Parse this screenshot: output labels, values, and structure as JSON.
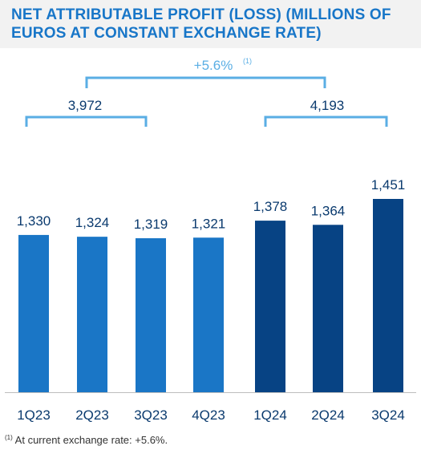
{
  "title": "NET ATTRIBUTABLE PROFIT (LOSS) (MILLIONS OF EUROS AT CONSTANT EXCHANGE RATE)",
  "colors": {
    "title": "#1876c8",
    "bar_2023": "#1a76c6",
    "bar_2024": "#074384",
    "bracket": "#5aaee4",
    "growth_label": "#5aaee4",
    "value_label": "#0a3a6e",
    "axis_label": "#0a3a6e",
    "baseline": "#bdbdbd"
  },
  "chart_data": {
    "type": "bar",
    "categories": [
      "1Q23",
      "2Q23",
      "3Q23",
      "4Q23",
      "1Q24",
      "2Q24",
      "3Q24"
    ],
    "values": [
      1330,
      1324,
      1319,
      1321,
      1378,
      1364,
      1451
    ],
    "value_labels": [
      "1,330",
      "1,324",
      "1,319",
      "1,321",
      "1,378",
      "1,364",
      "1,451"
    ],
    "ylim": [
      1000,
      1500
    ],
    "period_totals": [
      {
        "label": "3,972",
        "categories": [
          "1Q23",
          "2Q23",
          "3Q23"
        ]
      },
      {
        "label": "4,193",
        "categories": [
          "1Q24",
          "2Q24",
          "3Q24"
        ]
      }
    ],
    "growth": {
      "label": "+5.6%",
      "note_marker": "(1)"
    }
  },
  "footnote": {
    "marker": "(1)",
    "text": " At current exchange rate: +5.6%."
  }
}
